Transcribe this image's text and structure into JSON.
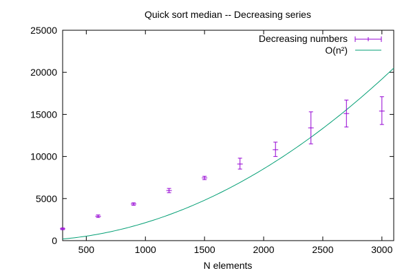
{
  "chart_data": {
    "type": "scatter",
    "title": "Quick sort median -- Decreasing series",
    "xlabel": "N elements",
    "ylabel": "",
    "xlim": [
      300,
      3100
    ],
    "ylim": [
      0,
      25000
    ],
    "xticks": [
      500,
      1000,
      1500,
      2000,
      2500,
      3000
    ],
    "yticks": [
      0,
      5000,
      10000,
      15000,
      20000,
      25000
    ],
    "grid": false,
    "legend_position": "top-right",
    "series": [
      {
        "name": "Decreasing numbers",
        "style": "points-with-errorbars",
        "color": "#9400d3",
        "points": [
          {
            "x": 300,
            "y": 1400,
            "lo": 1300,
            "hi": 1500
          },
          {
            "x": 600,
            "y": 2900,
            "lo": 2750,
            "hi": 3050
          },
          {
            "x": 900,
            "y": 4350,
            "lo": 4200,
            "hi": 4500
          },
          {
            "x": 1200,
            "y": 5950,
            "lo": 5700,
            "hi": 6200
          },
          {
            "x": 1500,
            "y": 7450,
            "lo": 7250,
            "hi": 7650
          },
          {
            "x": 1800,
            "y": 9100,
            "lo": 8500,
            "hi": 9800
          },
          {
            "x": 2100,
            "y": 10800,
            "lo": 10000,
            "hi": 11700
          },
          {
            "x": 2400,
            "y": 13400,
            "lo": 11500,
            "hi": 15300
          },
          {
            "x": 2700,
            "y": 15100,
            "lo": 13500,
            "hi": 16700
          },
          {
            "x": 3000,
            "y": 15400,
            "lo": 13800,
            "hi": 17100
          }
        ]
      },
      {
        "name": "O(n²)",
        "style": "line",
        "color": "#009e73",
        "coefficient": 0.0021333,
        "exponent": 2
      }
    ]
  }
}
